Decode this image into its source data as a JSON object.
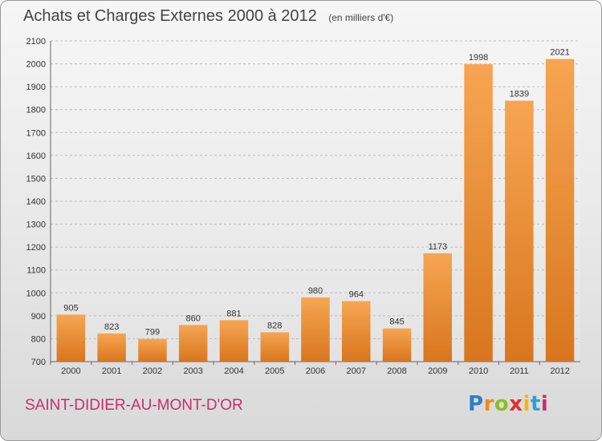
{
  "header": {
    "title": "Achats et Charges Externes 2000 à 2012",
    "subtitle": "(en milliers d'€)"
  },
  "footer": {
    "commune": "SAINT-DIDIER-AU-MONT-D'OR",
    "logo_text": "Proxiti"
  },
  "colors": {
    "bar_light": "#f7a552",
    "bar_dark": "#d8761e",
    "commune_text": "#c4306a"
  },
  "chart_data": {
    "type": "bar",
    "title": "Achats et Charges Externes 2000 à 2012",
    "subtitle": "(en milliers d'€)",
    "categories": [
      "2000",
      "2001",
      "2002",
      "2003",
      "2004",
      "2005",
      "2006",
      "2007",
      "2008",
      "2009",
      "2010",
      "2011",
      "2012"
    ],
    "values": [
      905,
      823,
      799,
      860,
      881,
      828,
      980,
      964,
      845,
      1173,
      1998,
      1839,
      2021
    ],
    "ylim": [
      700,
      2100
    ],
    "yticks": [
      700,
      800,
      900,
      1000,
      1100,
      1200,
      1300,
      1400,
      1500,
      1600,
      1700,
      1800,
      1900,
      2000,
      2100
    ],
    "grid": true,
    "xlabel": "",
    "ylabel": ""
  }
}
